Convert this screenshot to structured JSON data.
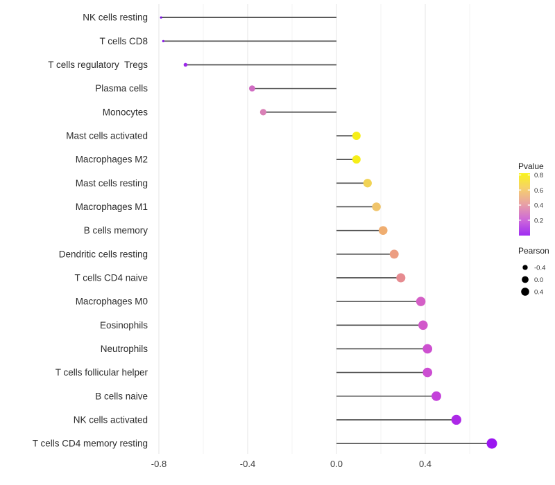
{
  "chart_data": {
    "type": "scatter",
    "subtype": "lollipop",
    "title": "",
    "xlabel": "",
    "ylabel": "",
    "xlim": [
      -0.868,
      0.775
    ],
    "grid": true,
    "x_ticks": [
      {
        "label": "-0.8",
        "value": -0.8
      },
      {
        "label": "-0.4",
        "value": -0.4
      },
      {
        "label": "0.0",
        "value": 0.0
      },
      {
        "label": "0.4",
        "value": 0.4
      }
    ],
    "x_minor_grid_values": [
      -0.6,
      -0.2,
      0.2,
      0.6
    ],
    "rows": [
      {
        "label": "NK cells resting",
        "pearson": -0.79,
        "dot_color": "#7a14e0"
      },
      {
        "label": "T cells CD8",
        "pearson": -0.78,
        "dot_color": "#8a1ae6"
      },
      {
        "label": "T cells regulatory  Tregs",
        "pearson": -0.68,
        "dot_color": "#9c29e9"
      },
      {
        "label": "Plasma cells",
        "pearson": -0.38,
        "dot_color": "#d06cc2"
      },
      {
        "label": "Monocytes",
        "pearson": -0.33,
        "dot_color": "#d980b6"
      },
      {
        "label": "Mast cells activated",
        "pearson": 0.09,
        "dot_color": "#f6ee18"
      },
      {
        "label": "Macrophages M2",
        "pearson": 0.09,
        "dot_color": "#f6ee18"
      },
      {
        "label": "Mast cells resting",
        "pearson": 0.14,
        "dot_color": "#f1d355"
      },
      {
        "label": "Macrophages M1",
        "pearson": 0.18,
        "dot_color": "#f0c46a"
      },
      {
        "label": "B cells memory",
        "pearson": 0.21,
        "dot_color": "#efad70"
      },
      {
        "label": "Dendritic cells resting",
        "pearson": 0.26,
        "dot_color": "#ec9d81"
      },
      {
        "label": "T cells CD4 naive",
        "pearson": 0.29,
        "dot_color": "#e68b90"
      },
      {
        "label": "Macrophages M0",
        "pearson": 0.38,
        "dot_color": "#d45fc6"
      },
      {
        "label": "Eosinophils",
        "pearson": 0.39,
        "dot_color": "#d158ca"
      },
      {
        "label": "Neutrophils",
        "pearson": 0.41,
        "dot_color": "#cd50d0"
      },
      {
        "label": "T cells follicular helper",
        "pearson": 0.41,
        "dot_color": "#cc4ed2"
      },
      {
        "label": "B cells naive",
        "pearson": 0.45,
        "dot_color": "#c441da"
      },
      {
        "label": "NK cells activated",
        "pearson": 0.54,
        "dot_color": "#ac28e7"
      },
      {
        "label": "T cells CD4 memory resting",
        "pearson": 0.7,
        "dot_color": "#9a16f0"
      }
    ],
    "legend_pvalue": {
      "title": "Pvalue",
      "tick_labels": [
        {
          "label": "0.8",
          "value": 0.8
        },
        {
          "label": "0.6",
          "value": 0.6
        },
        {
          "label": "0.4",
          "value": 0.4
        },
        {
          "label": "0.2",
          "value": 0.2
        }
      ],
      "gradient_top_to_bottom": [
        "#f9f41c",
        "#f5cf6e",
        "#e8a0a6",
        "#cd68d9",
        "#9f2cf2"
      ]
    },
    "legend_pearson": {
      "title": "Pearson",
      "entries": [
        {
          "label": "-0.4",
          "value": -0.4
        },
        {
          "label": "0.0",
          "value": 0.0
        },
        {
          "label": "0.4",
          "value": 0.4
        }
      ],
      "dot_color": "#000000"
    },
    "colors": {
      "background": "#ffffff",
      "stem": "#4a4a4a",
      "grid_major": "#e6e6e6",
      "grid_minor": "#f2f2f2",
      "axis_text": "#3d3d3d",
      "row_label_text": "#2b2b2b",
      "legend_title_text": "#1a1a1a",
      "legend_label_text": "#333333",
      "colorbar_tick": "#ffffff"
    }
  }
}
